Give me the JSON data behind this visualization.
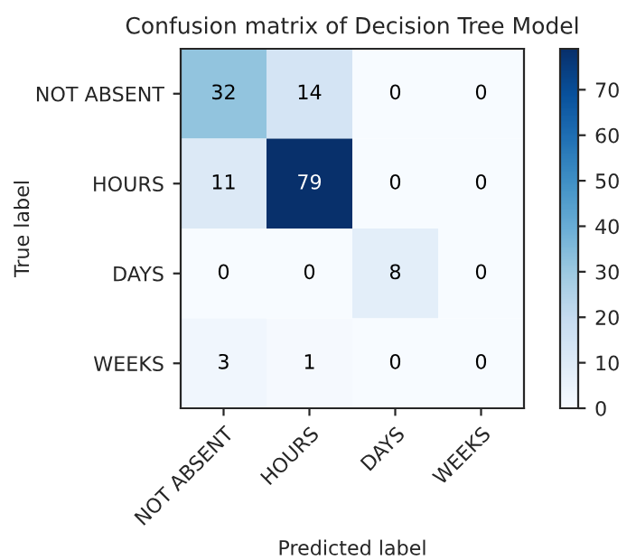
{
  "chart_data": {
    "type": "heatmap",
    "title": "Confusion matrix of Decision Tree Model",
    "xlabel": "Predicted label",
    "ylabel": "True label",
    "categories": [
      "NOT ABSENT",
      "HOURS",
      "DAYS",
      "WEEKS"
    ],
    "y_categories": [
      "NOT ABSENT",
      "HOURS",
      "DAYS",
      "WEEKS"
    ],
    "cells": [
      [
        32,
        14,
        0,
        0
      ],
      [
        11,
        79,
        0,
        0
      ],
      [
        0,
        0,
        8,
        0
      ],
      [
        3,
        1,
        0,
        0
      ]
    ],
    "data_labels": true,
    "clim": [
      0,
      79
    ],
    "cticks": [
      0,
      10,
      20,
      30,
      40,
      50,
      60,
      70
    ],
    "grid": false
  }
}
